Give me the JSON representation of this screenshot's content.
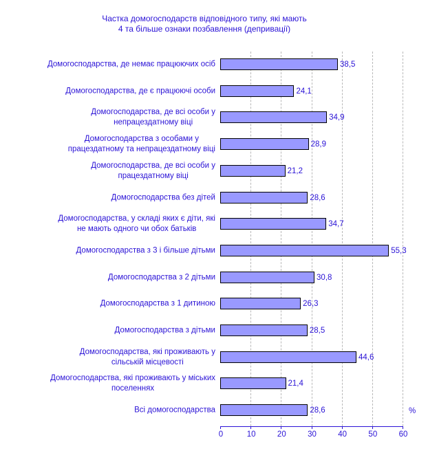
{
  "chart_data": {
    "type": "bar",
    "orientation": "horizontal",
    "title": "Частка домогосподарств відповідного типу, які мають\n4 та більше ознаки позбавлення (депривації)",
    "title_lines": [
      "Частка домогосподарств відповідного типу, які мають",
      "4 та більше ознаки позбавлення (депривації)"
    ],
    "categories": [
      [
        "Домогосподарства, де немає працюючих осіб"
      ],
      [
        "Домогосподарства, де є працюючі особи"
      ],
      [
        "Домогосподарства, де всі особи у",
        "непрацездатному віці"
      ],
      [
        "Домогосподарства з особами у",
        "працездатному та непрацездатному віці"
      ],
      [
        "Домогосподарства, де всі особи у",
        "працездатному віці"
      ],
      [
        "Домогосподарства без дітей"
      ],
      [
        "Домогосподарства, у складі яких є діти, які",
        "не мають одного чи обох батьків"
      ],
      [
        "Домогосподарства з 3 і більше дітьми"
      ],
      [
        "Домогосподарства з 2 дітьми"
      ],
      [
        "Домогосподарства з 1 дитиною"
      ],
      [
        "Домогосподарства з дітьми"
      ],
      [
        "Домогосподарства, які проживають у",
        "сільській місцевості"
      ],
      [
        "Домогосподарства, які проживають у міських",
        "поселеннях"
      ],
      [
        "Всі домогосподарства"
      ]
    ],
    "values": [
      38.5,
      24.1,
      34.9,
      28.9,
      21.2,
      28.6,
      34.7,
      55.3,
      30.8,
      26.3,
      28.5,
      44.6,
      21.4,
      28.6
    ],
    "value_labels": [
      "38,5",
      "24,1",
      "34,9",
      "28,9",
      "21,2",
      "28,6",
      "34,7",
      "55,3",
      "30,8",
      "26,3",
      "28,5",
      "44,6",
      "21,4",
      "28,6"
    ],
    "xlim": [
      0,
      60
    ],
    "xticks": [
      "0",
      "10",
      "20",
      "30",
      "40",
      "50",
      "60"
    ],
    "xlabel": "%",
    "grid": "vertical dashed",
    "colors": {
      "bar": "#9999ff",
      "text": "#2a12d6",
      "bar_border": "#000000"
    }
  }
}
